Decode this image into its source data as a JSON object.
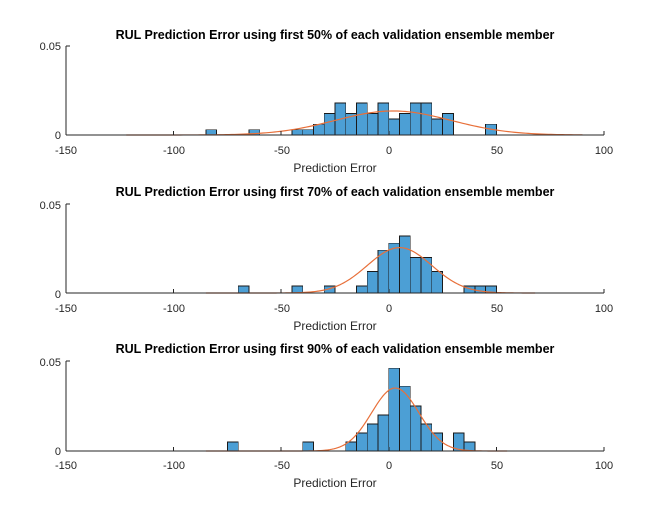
{
  "colors": {
    "bar": "#4c9fd5",
    "bar_edge": "#1a1a1a",
    "fit": "#e8703a",
    "axis": "#262626"
  },
  "chart_data": [
    {
      "type": "bar",
      "title": "RUL Prediction Error using first 50% of each validation ensemble member",
      "xlabel": "Prediction Error",
      "ylabel": "",
      "xlim": [
        -150,
        100
      ],
      "ylim": [
        0,
        0.05
      ],
      "xticks": [
        "-150",
        "-100",
        "-50",
        "0",
        "50",
        "100"
      ],
      "yticks": [
        "0",
        "0.05"
      ],
      "bin_width": 5,
      "bins": [
        {
          "x0": -85,
          "v": 0.003
        },
        {
          "x0": -65,
          "v": 0.003
        },
        {
          "x0": -45,
          "v": 0.003
        },
        {
          "x0": -40,
          "v": 0.003
        },
        {
          "x0": -35,
          "v": 0.006
        },
        {
          "x0": -30,
          "v": 0.012
        },
        {
          "x0": -25,
          "v": 0.018
        },
        {
          "x0": -20,
          "v": 0.012
        },
        {
          "x0": -15,
          "v": 0.018
        },
        {
          "x0": -10,
          "v": 0.012
        },
        {
          "x0": -5,
          "v": 0.018
        },
        {
          "x0": 0,
          "v": 0.009
        },
        {
          "x0": 5,
          "v": 0.012
        },
        {
          "x0": 10,
          "v": 0.018
        },
        {
          "x0": 15,
          "v": 0.018
        },
        {
          "x0": 20,
          "v": 0.009
        },
        {
          "x0": 25,
          "v": 0.012
        },
        {
          "x0": 45,
          "v": 0.006
        }
      ],
      "fit": {
        "type": "normal",
        "mean": 2,
        "sd": 27,
        "peak": 0.0135,
        "x_range": [
          -122,
          90
        ]
      }
    },
    {
      "type": "bar",
      "title": "RUL Prediction Error using first 70% of each validation ensemble member",
      "xlabel": "Prediction Error",
      "ylabel": "",
      "xlim": [
        -150,
        100
      ],
      "ylim": [
        0,
        0.05
      ],
      "xticks": [
        "-150",
        "-100",
        "-50",
        "0",
        "50",
        "100"
      ],
      "yticks": [
        "0",
        "0.05"
      ],
      "bin_width": 5,
      "bins": [
        {
          "x0": -70,
          "v": 0.004
        },
        {
          "x0": -45,
          "v": 0.004
        },
        {
          "x0": -30,
          "v": 0.004
        },
        {
          "x0": -15,
          "v": 0.004
        },
        {
          "x0": -10,
          "v": 0.012
        },
        {
          "x0": -5,
          "v": 0.024
        },
        {
          "x0": 0,
          "v": 0.028
        },
        {
          "x0": 5,
          "v": 0.032
        },
        {
          "x0": 10,
          "v": 0.02
        },
        {
          "x0": 15,
          "v": 0.02
        },
        {
          "x0": 20,
          "v": 0.012
        },
        {
          "x0": 35,
          "v": 0.004
        },
        {
          "x0": 40,
          "v": 0.004
        },
        {
          "x0": 45,
          "v": 0.004
        }
      ],
      "fit": {
        "type": "normal",
        "mean": 5,
        "sd": 15,
        "peak": 0.0255,
        "x_range": [
          -85,
          68
        ]
      }
    },
    {
      "type": "bar",
      "title": "RUL Prediction Error using first 90% of each validation ensemble member",
      "xlabel": "Prediction Error",
      "ylabel": "",
      "xlim": [
        -150,
        100
      ],
      "ylim": [
        0,
        0.05
      ],
      "xticks": [
        "-150",
        "-100",
        "-50",
        "0",
        "50",
        "100"
      ],
      "yticks": [
        "0",
        "0.05"
      ],
      "bin_width": 5,
      "bins": [
        {
          "x0": -75,
          "v": 0.005
        },
        {
          "x0": -40,
          "v": 0.005
        },
        {
          "x0": -20,
          "v": 0.005
        },
        {
          "x0": -15,
          "v": 0.01
        },
        {
          "x0": -10,
          "v": 0.015
        },
        {
          "x0": -5,
          "v": 0.02
        },
        {
          "x0": 0,
          "v": 0.046
        },
        {
          "x0": 5,
          "v": 0.036
        },
        {
          "x0": 10,
          "v": 0.025
        },
        {
          "x0": 15,
          "v": 0.015
        },
        {
          "x0": 20,
          "v": 0.01
        },
        {
          "x0": 30,
          "v": 0.01
        },
        {
          "x0": 35,
          "v": 0.005
        }
      ],
      "fit": {
        "type": "normal",
        "mean": 3,
        "sd": 11,
        "peak": 0.035,
        "x_range": [
          -85,
          55
        ]
      }
    }
  ]
}
